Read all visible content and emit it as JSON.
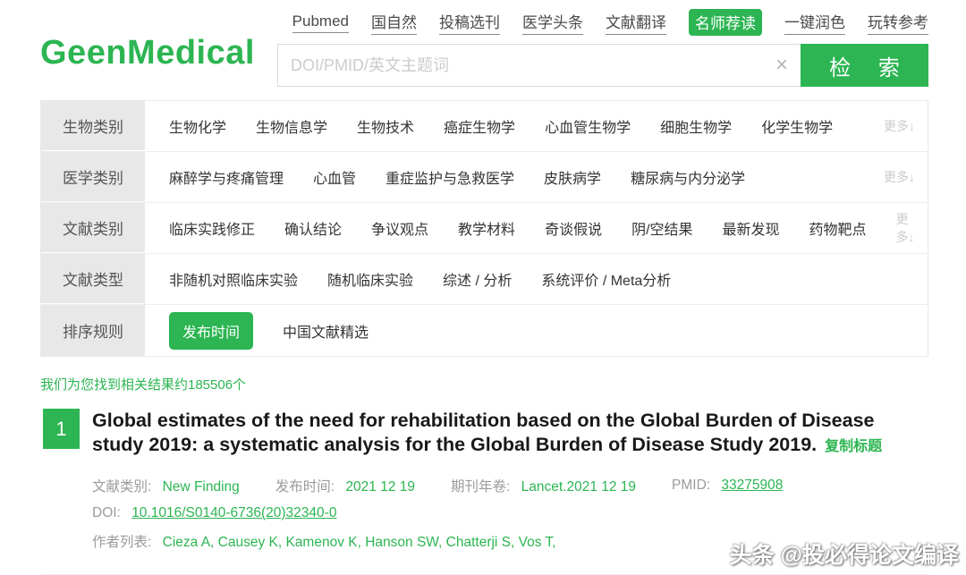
{
  "colors": {
    "accent": "#2cb552",
    "label_bg": "#e8e8e8",
    "muted": "#9b9b9b"
  },
  "brand": {
    "logo": "GeenMedical"
  },
  "topnav": {
    "items": [
      {
        "label": "Pubmed",
        "active": false
      },
      {
        "label": "国自然",
        "active": false
      },
      {
        "label": "投稿选刊",
        "active": false
      },
      {
        "label": "医学头条",
        "active": false
      },
      {
        "label": "文献翻译",
        "active": false
      },
      {
        "label": "名师荐读",
        "active": true
      },
      {
        "label": "一键润色",
        "active": false
      },
      {
        "label": "玩转参考",
        "active": false
      }
    ]
  },
  "search": {
    "placeholder": "DOI/PMID/英文主题词",
    "clear_icon": "×",
    "button_label": "检 索"
  },
  "filters": {
    "rows": [
      {
        "label": "生物类别",
        "items": [
          "生物化学",
          "生物信息学",
          "生物技术",
          "癌症生物学",
          "心血管生物学",
          "细胞生物学",
          "化学生物学"
        ],
        "more": "更多↓"
      },
      {
        "label": "医学类别",
        "items": [
          "麻醉学与疼痛管理",
          "心血管",
          "重症监护与急救医学",
          "皮肤病学",
          "糖尿病与内分泌学"
        ],
        "more": "更多↓"
      },
      {
        "label": "文献类别",
        "items": [
          "临床实践修正",
          "确认结论",
          "争议观点",
          "教学材料",
          "奇谈假说",
          "阴/空结果",
          "最新发现",
          "药物靶点"
        ],
        "more": "更多↓"
      },
      {
        "label": "文献类型",
        "items": [
          "非随机对照临床实验",
          "随机临床实验",
          "综述 / 分析",
          "系统评价 / Meta分析"
        ]
      },
      {
        "label": "排序规则",
        "active_button": "发布时间",
        "secondary": "中国文献精选"
      }
    ]
  },
  "results": {
    "summary": "我们为您找到相关结果约185506个",
    "item": {
      "number": "1",
      "title": "Global estimates of the need for rehabilitation based on the Global Burden of Disease study 2019: a systematic analysis for the Global Burden of Disease Study 2019.",
      "copy_label": "复制标题",
      "meta": [
        {
          "label": "文献类别:",
          "value": "New Finding"
        },
        {
          "label": "发布时间:",
          "value": "2021 12 19"
        },
        {
          "label": "期刊年卷:",
          "value": "Lancet.2021 12 19"
        },
        {
          "label": "PMID:",
          "value": "33275908"
        }
      ],
      "doi_label": "DOI:",
      "doi_value": "10.1016/S0140-6736(20)32340-0",
      "authors_label": "作者列表:",
      "authors_value": "Cieza A,  Causey K,  Kamenov K,  Hanson SW,  Chatterji S,  Vos T,"
    }
  },
  "watermark": "头条 @投必得论文编译"
}
